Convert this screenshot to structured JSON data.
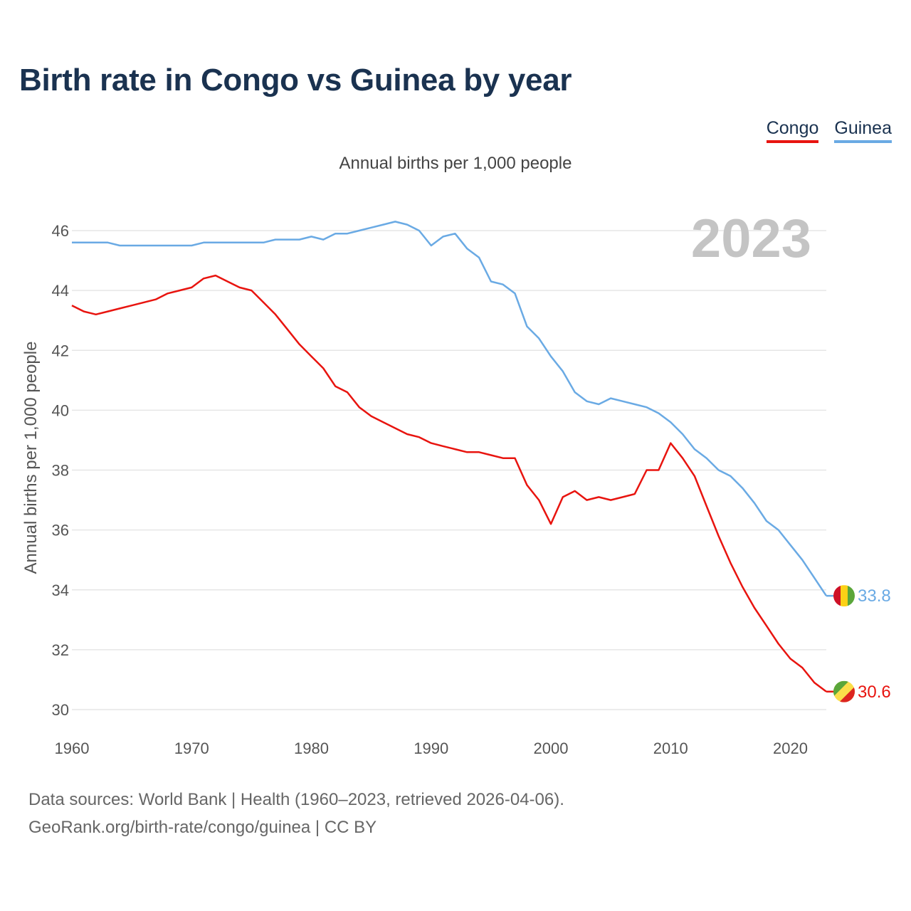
{
  "title": "Birth rate in Congo vs Guinea by year",
  "subtitle": "Annual births per 1,000 people",
  "footer": {
    "line1": "Data sources: World Bank | Health (1960–2023, retrieved 2026-04-06).",
    "line2": "GeoRank.org/birth-rate/congo/guinea | CC BY"
  },
  "colors": {
    "congo": "#e8140f",
    "guinea": "#6aaae4",
    "grid": "#e6e6e6",
    "year": "#c4c4c4"
  },
  "chart_data": {
    "type": "line",
    "title": "Birth rate in Congo vs Guinea by year",
    "ylabel": "Annual births per 1,000 people",
    "xlabel": "",
    "ylim": [
      30,
      46
    ],
    "xlim": [
      1960,
      2023
    ],
    "yticks": [
      30,
      32,
      34,
      36,
      38,
      40,
      42,
      44,
      46
    ],
    "xticks": [
      1960,
      1970,
      1980,
      1990,
      2000,
      2010,
      2020
    ],
    "year_label": "2023",
    "x": [
      1960,
      1961,
      1962,
      1963,
      1964,
      1965,
      1966,
      1967,
      1968,
      1969,
      1970,
      1971,
      1972,
      1973,
      1974,
      1975,
      1976,
      1977,
      1978,
      1979,
      1980,
      1981,
      1982,
      1983,
      1984,
      1985,
      1986,
      1987,
      1988,
      1989,
      1990,
      1991,
      1992,
      1993,
      1994,
      1995,
      1996,
      1997,
      1998,
      1999,
      2000,
      2001,
      2002,
      2003,
      2004,
      2005,
      2006,
      2007,
      2008,
      2009,
      2010,
      2011,
      2012,
      2013,
      2014,
      2015,
      2016,
      2017,
      2018,
      2019,
      2020,
      2021,
      2022,
      2023
    ],
    "series": [
      {
        "name": "Congo",
        "color": "#e8140f",
        "end_label": "30.6",
        "values": [
          43.5,
          43.3,
          43.2,
          43.3,
          43.4,
          43.5,
          43.6,
          43.7,
          43.9,
          44.0,
          44.1,
          44.4,
          44.5,
          44.3,
          44.1,
          44.0,
          43.6,
          43.2,
          42.7,
          42.2,
          41.8,
          41.4,
          40.8,
          40.6,
          40.1,
          39.8,
          39.6,
          39.4,
          39.2,
          39.1,
          38.9,
          38.8,
          38.7,
          38.6,
          38.6,
          38.5,
          38.4,
          38.4,
          37.5,
          37.0,
          36.2,
          37.1,
          37.3,
          37.0,
          37.1,
          37.0,
          37.1,
          37.2,
          38.0,
          38.0,
          38.9,
          38.4,
          37.8,
          36.8,
          35.8,
          34.9,
          34.1,
          33.4,
          32.8,
          32.2,
          31.7,
          31.4,
          30.9,
          30.6
        ]
      },
      {
        "name": "Guinea",
        "color": "#6aaae4",
        "end_label": "33.8",
        "values": [
          45.6,
          45.6,
          45.6,
          45.6,
          45.5,
          45.5,
          45.5,
          45.5,
          45.5,
          45.5,
          45.5,
          45.6,
          45.6,
          45.6,
          45.6,
          45.6,
          45.6,
          45.7,
          45.7,
          45.7,
          45.8,
          45.7,
          45.9,
          45.9,
          46.0,
          46.1,
          46.2,
          46.3,
          46.2,
          46.0,
          45.5,
          45.8,
          45.9,
          45.4,
          45.1,
          44.3,
          44.2,
          43.9,
          42.8,
          42.4,
          41.8,
          41.3,
          40.6,
          40.3,
          40.2,
          40.4,
          40.3,
          40.2,
          40.1,
          39.9,
          39.6,
          39.2,
          38.7,
          38.4,
          38.0,
          37.8,
          37.4,
          36.9,
          36.3,
          36.0,
          35.5,
          35.0,
          34.4,
          33.8
        ]
      }
    ]
  }
}
